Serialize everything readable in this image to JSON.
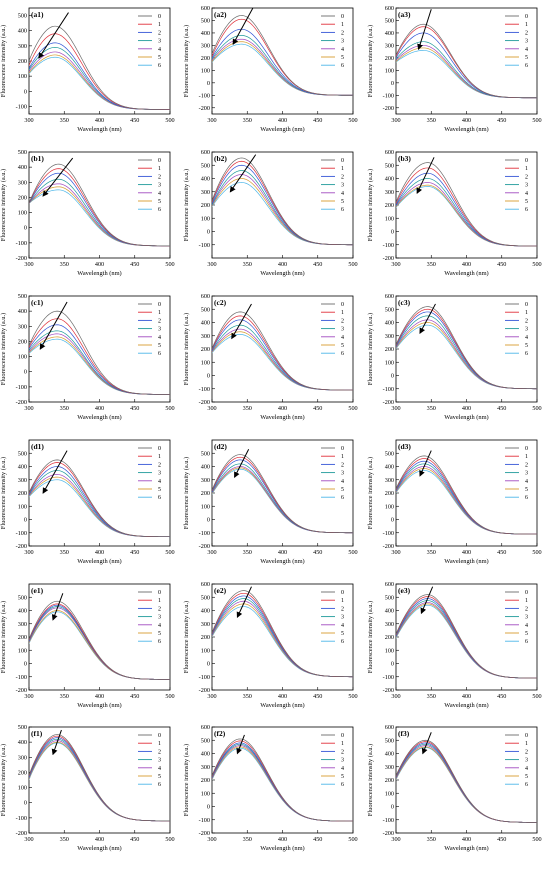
{
  "figure": {
    "series_names": [
      "0",
      "1",
      "2",
      "3",
      "4",
      "5",
      "6"
    ],
    "series_colors": [
      "#6b6b6b",
      "#e0303a",
      "#3355d6",
      "#1f9a9a",
      "#a24ac0",
      "#d79b2e",
      "#4fb7e8"
    ],
    "x_label": "Wavelength (nm)",
    "y_label": "Fluorescence intensity (a.u.)",
    "x_ticks": [
      "300",
      "350",
      "400",
      "450",
      "500"
    ]
  },
  "chart_data": [
    {
      "label": "(a1)",
      "type": "line",
      "xlim": [
        300,
        500
      ],
      "ylim": [
        -150,
        550
      ],
      "yticks": [
        -100,
        0,
        100,
        200,
        300,
        400,
        500
      ],
      "x": [
        300,
        340,
        420,
        500
      ],
      "peak_x": 337,
      "peaks": [
        430,
        380,
        320,
        290,
        260,
        240,
        225
      ],
      "start": [
        200,
        170,
        150,
        140,
        130,
        120,
        115
      ],
      "tail": -120,
      "arrow_from": [
        356,
        520
      ],
      "arrow_to": [
        314,
        220
      ]
    },
    {
      "label": "(a2)",
      "type": "line",
      "xlim": [
        300,
        500
      ],
      "ylim": [
        -250,
        600
      ],
      "yticks": [
        -200,
        -100,
        0,
        100,
        200,
        300,
        400,
        500,
        600
      ],
      "x": [
        300,
        342,
        420,
        500
      ],
      "peak_x": 342,
      "peaks": [
        540,
        510,
        430,
        380,
        350,
        330,
        310
      ],
      "start": [
        230,
        210,
        200,
        190,
        180,
        170,
        165
      ],
      "tail": -100,
      "arrow_from": [
        358,
        600
      ],
      "arrow_to": [
        330,
        310
      ]
    },
    {
      "label": "(a3)",
      "type": "line",
      "xlim": [
        300,
        500
      ],
      "ylim": [
        -250,
        600
      ],
      "yticks": [
        -200,
        -100,
        0,
        100,
        200,
        300,
        400,
        500,
        600
      ],
      "x": [
        300,
        340,
        420,
        500
      ],
      "peak_x": 339,
      "peaks": [
        470,
        450,
        400,
        330,
        300,
        280,
        260
      ],
      "start": [
        220,
        210,
        200,
        190,
        180,
        170,
        165
      ],
      "tail": -120,
      "arrow_from": [
        350,
        590
      ],
      "arrow_to": [
        332,
        270
      ]
    },
    {
      "label": "(b1)",
      "type": "line",
      "xlim": [
        300,
        500
      ],
      "ylim": [
        -200,
        500
      ],
      "yticks": [
        -200,
        -100,
        0,
        100,
        200,
        300,
        400,
        500
      ],
      "x": [
        300,
        342,
        420,
        500
      ],
      "peak_x": 342,
      "peaks": [
        420,
        390,
        360,
        320,
        290,
        270,
        250
      ],
      "start": [
        160,
        160,
        160,
        160,
        160,
        160,
        160
      ],
      "tail": -120,
      "arrow_from": [
        362,
        460
      ],
      "arrow_to": [
        320,
        210
      ]
    },
    {
      "label": "(b2)",
      "type": "line",
      "xlim": [
        300,
        500
      ],
      "ylim": [
        -200,
        600
      ],
      "yticks": [
        -100,
        0,
        100,
        200,
        300,
        400,
        500,
        600
      ],
      "x": [
        300,
        342,
        420,
        500
      ],
      "peak_x": 342,
      "peaks": [
        555,
        530,
        500,
        460,
        430,
        400,
        370
      ],
      "start": [
        230,
        220,
        210,
        200,
        195,
        190,
        185
      ],
      "tail": -100,
      "arrow_from": [
        362,
        580
      ],
      "arrow_to": [
        326,
        300
      ]
    },
    {
      "label": "(b3)",
      "type": "line",
      "xlim": [
        300,
        500
      ],
      "ylim": [
        -200,
        600
      ],
      "yticks": [
        -200,
        -100,
        0,
        100,
        200,
        300,
        400,
        500,
        600
      ],
      "x": [
        300,
        342,
        420,
        500
      ],
      "peak_x": 345,
      "peaks": [
        520,
        480,
        440,
        400,
        370,
        350,
        340
      ],
      "start": [
        220,
        210,
        200,
        195,
        190,
        185,
        180
      ],
      "tail": -110,
      "arrow_from": [
        354,
        560
      ],
      "arrow_to": [
        330,
        290
      ]
    },
    {
      "label": "(c1)",
      "type": "line",
      "xlim": [
        300,
        500
      ],
      "ylim": [
        -200,
        500
      ],
      "yticks": [
        -200,
        -100,
        0,
        100,
        200,
        300,
        400,
        500
      ],
      "x": [
        300,
        340,
        420,
        500
      ],
      "peak_x": 340,
      "peaks": [
        400,
        350,
        310,
        270,
        250,
        230,
        215
      ],
      "start": [
        170,
        160,
        150,
        140,
        130,
        125,
        120
      ],
      "tail": -150,
      "arrow_from": [
        354,
        460
      ],
      "arrow_to": [
        316,
        150
      ]
    },
    {
      "label": "(c2)",
      "type": "line",
      "xlim": [
        300,
        500
      ],
      "ylim": [
        -200,
        600
      ],
      "yticks": [
        -200,
        -100,
        0,
        100,
        200,
        300,
        400,
        500,
        600
      ],
      "x": [
        300,
        340,
        420,
        500
      ],
      "peak_x": 340,
      "peaks": [
        480,
        450,
        420,
        380,
        350,
        330,
        310
      ],
      "start": [
        200,
        195,
        190,
        185,
        180,
        175,
        170
      ],
      "tail": -110,
      "arrow_from": [
        356,
        540
      ],
      "arrow_to": [
        328,
        280
      ]
    },
    {
      "label": "(c3)",
      "type": "line",
      "xlim": [
        300,
        500
      ],
      "ylim": [
        -200,
        600
      ],
      "yticks": [
        -200,
        -100,
        0,
        100,
        200,
        300,
        400,
        500,
        600
      ],
      "x": [
        300,
        345,
        420,
        500
      ],
      "peak_x": 345,
      "peaks": [
        520,
        500,
        480,
        450,
        420,
        400,
        380
      ],
      "start": [
        230,
        225,
        220,
        215,
        210,
        205,
        200
      ],
      "tail": -100,
      "arrow_from": [
        356,
        540
      ],
      "arrow_to": [
        334,
        320
      ]
    },
    {
      "label": "(d1)",
      "type": "line",
      "xlim": [
        300,
        500
      ],
      "ylim": [
        -200,
        600
      ],
      "yticks": [
        -200,
        -100,
        0,
        100,
        200,
        300,
        400,
        500
      ],
      "x": [
        300,
        340,
        420,
        500
      ],
      "peak_x": 340,
      "peaks": [
        450,
        430,
        400,
        370,
        340,
        320,
        300
      ],
      "start": [
        200,
        195,
        190,
        185,
        180,
        175,
        170
      ],
      "tail": -130,
      "arrow_from": [
        354,
        520
      ],
      "arrow_to": [
        320,
        200
      ]
    },
    {
      "label": "(d2)",
      "type": "line",
      "xlim": [
        300,
        500
      ],
      "ylim": [
        -200,
        600
      ],
      "yticks": [
        -200,
        -100,
        0,
        100,
        200,
        300,
        400,
        500
      ],
      "x": [
        300,
        340,
        420,
        500
      ],
      "peak_x": 340,
      "peaks": [
        490,
        470,
        450,
        420,
        400,
        390,
        380
      ],
      "start": [
        220,
        215,
        210,
        205,
        200,
        195,
        190
      ],
      "tail": -100,
      "arrow_from": [
        352,
        530
      ],
      "arrow_to": [
        332,
        320
      ]
    },
    {
      "label": "(d3)",
      "type": "line",
      "xlim": [
        300,
        500
      ],
      "ylim": [
        -200,
        600
      ],
      "yticks": [
        -200,
        -100,
        0,
        100,
        200,
        300,
        400,
        500
      ],
      "x": [
        300,
        340,
        420,
        500
      ],
      "peak_x": 340,
      "peaks": [
        480,
        460,
        440,
        420,
        400,
        385,
        370
      ],
      "start": [
        230,
        225,
        220,
        215,
        210,
        205,
        200
      ],
      "tail": -110,
      "arrow_from": [
        350,
        520
      ],
      "arrow_to": [
        334,
        330
      ]
    },
    {
      "label": "(e1)",
      "type": "line",
      "xlim": [
        300,
        500
      ],
      "ylim": [
        -200,
        600
      ],
      "yticks": [
        -200,
        -100,
        0,
        100,
        200,
        300,
        400,
        500
      ],
      "x": [
        300,
        340,
        420,
        500
      ],
      "peak_x": 340,
      "peaks": [
        470,
        450,
        440,
        430,
        420,
        400,
        390
      ],
      "start": [
        180,
        175,
        170,
        165,
        160,
        155,
        150
      ],
      "tail": -120,
      "arrow_from": [
        348,
        530
      ],
      "arrow_to": [
        334,
        330
      ]
    },
    {
      "label": "(e2)",
      "type": "line",
      "xlim": [
        300,
        500
      ],
      "ylim": [
        -200,
        600
      ],
      "yticks": [
        -200,
        -100,
        0,
        100,
        200,
        300,
        400,
        500,
        600
      ],
      "x": [
        300,
        345,
        420,
        500
      ],
      "peak_x": 345,
      "peaks": [
        550,
        530,
        510,
        490,
        470,
        450,
        430
      ],
      "start": [
        230,
        225,
        220,
        215,
        210,
        205,
        200
      ],
      "tail": -100,
      "arrow_from": [
        356,
        580
      ],
      "arrow_to": [
        336,
        350
      ]
    },
    {
      "label": "(e3)",
      "type": "line",
      "xlim": [
        300,
        500
      ],
      "ylim": [
        -200,
        600
      ],
      "yticks": [
        -200,
        -100,
        0,
        100,
        200,
        300,
        400,
        500,
        600
      ],
      "x": [
        300,
        345,
        420,
        500
      ],
      "peak_x": 345,
      "peaks": [
        520,
        505,
        490,
        475,
        460,
        450,
        440
      ],
      "start": [
        220,
        215,
        210,
        205,
        200,
        195,
        190
      ],
      "tail": -110,
      "arrow_from": [
        352,
        580
      ],
      "arrow_to": [
        336,
        380
      ]
    },
    {
      "label": "(f1)",
      "type": "line",
      "xlim": [
        300,
        500
      ],
      "ylim": [
        -200,
        500
      ],
      "yticks": [
        -200,
        -100,
        0,
        100,
        200,
        300,
        400,
        500
      ],
      "x": [
        300,
        340,
        420,
        500
      ],
      "peak_x": 340,
      "peaks": [
        450,
        440,
        430,
        420,
        410,
        400,
        395
      ],
      "start": [
        180,
        175,
        170,
        165,
        160,
        155,
        150
      ],
      "tail": -120,
      "arrow_from": [
        346,
        480
      ],
      "arrow_to": [
        334,
        320
      ]
    },
    {
      "label": "(f2)",
      "type": "line",
      "xlim": [
        300,
        500
      ],
      "ylim": [
        -200,
        600
      ],
      "yticks": [
        -200,
        -100,
        0,
        100,
        200,
        300,
        400,
        500,
        600
      ],
      "x": [
        300,
        340,
        420,
        500
      ],
      "peak_x": 340,
      "peaks": [
        510,
        495,
        480,
        470,
        460,
        450,
        440
      ],
      "start": [
        230,
        225,
        220,
        215,
        210,
        205,
        200
      ],
      "tail": -110,
      "arrow_from": [
        346,
        540
      ],
      "arrow_to": [
        336,
        400
      ]
    },
    {
      "label": "(f3)",
      "type": "line",
      "xlim": [
        300,
        500
      ],
      "ylim": [
        -200,
        600
      ],
      "yticks": [
        -200,
        -100,
        0,
        100,
        200,
        300,
        400,
        500,
        600
      ],
      "x": [
        300,
        340,
        420,
        500
      ],
      "peak_x": 342,
      "peaks": [
        500,
        490,
        480,
        470,
        460,
        450,
        445
      ],
      "start": [
        230,
        225,
        220,
        215,
        210,
        205,
        200
      ],
      "tail": -120,
      "arrow_from": [
        350,
        560
      ],
      "arrow_to": [
        338,
        400
      ]
    }
  ]
}
